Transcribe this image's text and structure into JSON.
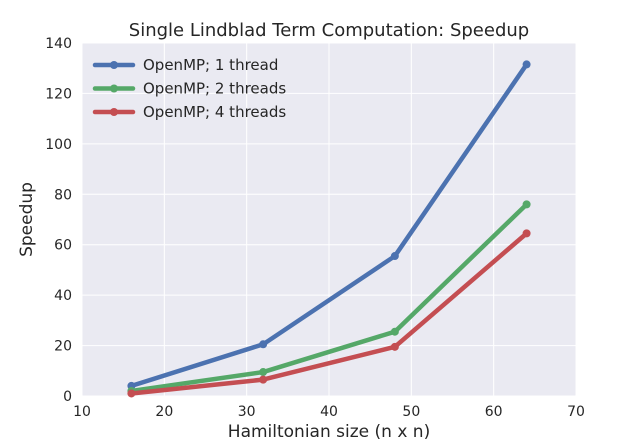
{
  "chart_data": {
    "type": "line",
    "title": "Single Lindblad Term Computation: Speedup",
    "xlabel": "Hamiltonian size (n x n)",
    "ylabel": "Speedup",
    "xlim": [
      10,
      70
    ],
    "ylim": [
      0,
      140
    ],
    "xticks": [
      10,
      20,
      30,
      40,
      50,
      60,
      70
    ],
    "yticks": [
      0,
      20,
      40,
      60,
      80,
      100,
      120,
      140
    ],
    "x": [
      16,
      32,
      48,
      64
    ],
    "grid": true,
    "legend_position": "top-left",
    "background_color": "#EAEAF2",
    "series": [
      {
        "name": "OpenMP; 1 thread",
        "color": "#4C72B0",
        "values": [
          4,
          20.5,
          55.5,
          131.5
        ]
      },
      {
        "name": "OpenMP; 2 threads",
        "color": "#55A868",
        "values": [
          2,
          9.5,
          25.5,
          76
        ]
      },
      {
        "name": "OpenMP; 4 threads",
        "color": "#C44E52",
        "values": [
          1,
          6.5,
          19.5,
          64.5
        ]
      }
    ]
  }
}
